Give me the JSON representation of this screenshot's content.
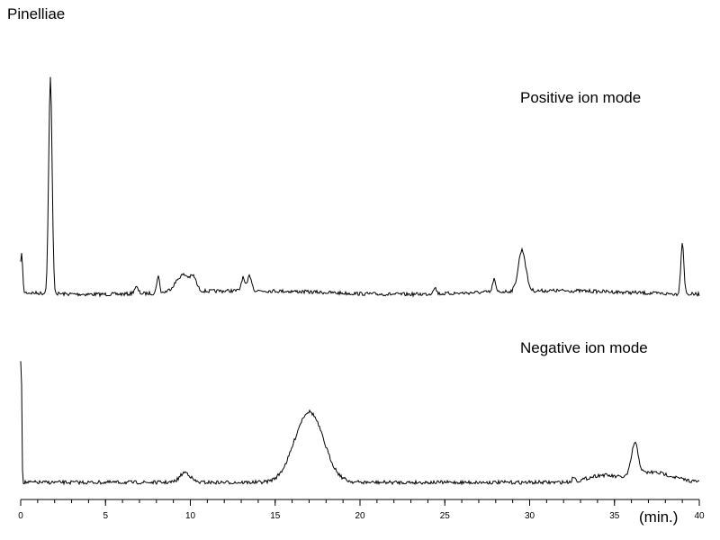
{
  "chart_data": {
    "type": "line",
    "title": "Pinelliae",
    "xlabel": "",
    "x_unit": "(min.)",
    "xlim": [
      0,
      40
    ],
    "x_ticks": [
      0,
      5,
      10,
      15,
      20,
      25,
      30,
      35,
      40
    ],
    "y_axis_visible": false,
    "grid": false,
    "series": [
      {
        "annotation": "Positive ion mode",
        "peaks": [
          {
            "t": 0.05,
            "h": 0.19,
            "w": 0.06
          },
          {
            "t": 1.75,
            "h": 1.0,
            "w": 0.1
          },
          {
            "t": 6.8,
            "h": 0.03,
            "w": 0.12
          },
          {
            "t": 8.1,
            "h": 0.08,
            "w": 0.08
          },
          {
            "t": 9.6,
            "h": 0.08,
            "w": 0.45
          },
          {
            "t": 10.2,
            "h": 0.04,
            "w": 0.15
          },
          {
            "t": 13.1,
            "h": 0.06,
            "w": 0.1
          },
          {
            "t": 13.5,
            "h": 0.07,
            "w": 0.12
          },
          {
            "t": 24.4,
            "h": 0.03,
            "w": 0.1
          },
          {
            "t": 27.9,
            "h": 0.06,
            "w": 0.08
          },
          {
            "t": 29.55,
            "h": 0.19,
            "w": 0.22
          },
          {
            "t": 39.0,
            "h": 0.24,
            "w": 0.09
          }
        ]
      },
      {
        "annotation": "Negative ion mode",
        "peaks": [
          {
            "t": 0.02,
            "h": 0.82,
            "w": 0.04
          },
          {
            "t": 9.7,
            "h": 0.06,
            "w": 0.3
          },
          {
            "t": 17.0,
            "h": 0.42,
            "w": 0.85
          },
          {
            "t": 32.6,
            "h": 0.03,
            "w": 0.08
          },
          {
            "t": 34.2,
            "h": 0.04,
            "w": 0.8
          },
          {
            "t": 36.2,
            "h": 0.19,
            "w": 0.2
          },
          {
            "t": 37.2,
            "h": 0.06,
            "w": 1.2
          }
        ]
      }
    ]
  },
  "colors": {
    "trace": "#000000",
    "axis": "#000000"
  }
}
